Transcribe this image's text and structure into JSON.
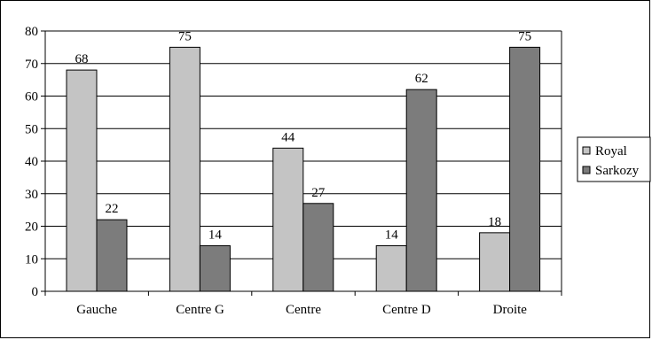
{
  "chart_data": {
    "type": "bar",
    "title": "",
    "xlabel": "",
    "ylabel": "",
    "categories": [
      "Gauche",
      "Centre G",
      "Centre",
      "Centre D",
      "Droite"
    ],
    "series": [
      {
        "name": "Royal",
        "values": [
          68,
          75,
          44,
          14,
          18
        ],
        "color": "#c4c4c4"
      },
      {
        "name": "Sarkozy",
        "values": [
          22,
          14,
          27,
          62,
          75
        ],
        "color": "#7c7c7c"
      }
    ],
    "ylim": [
      0,
      80
    ],
    "yticks": [
      0,
      10,
      20,
      30,
      40,
      50,
      60,
      70,
      80
    ],
    "grid": true,
    "legend_position": "right",
    "data_labels": true
  }
}
